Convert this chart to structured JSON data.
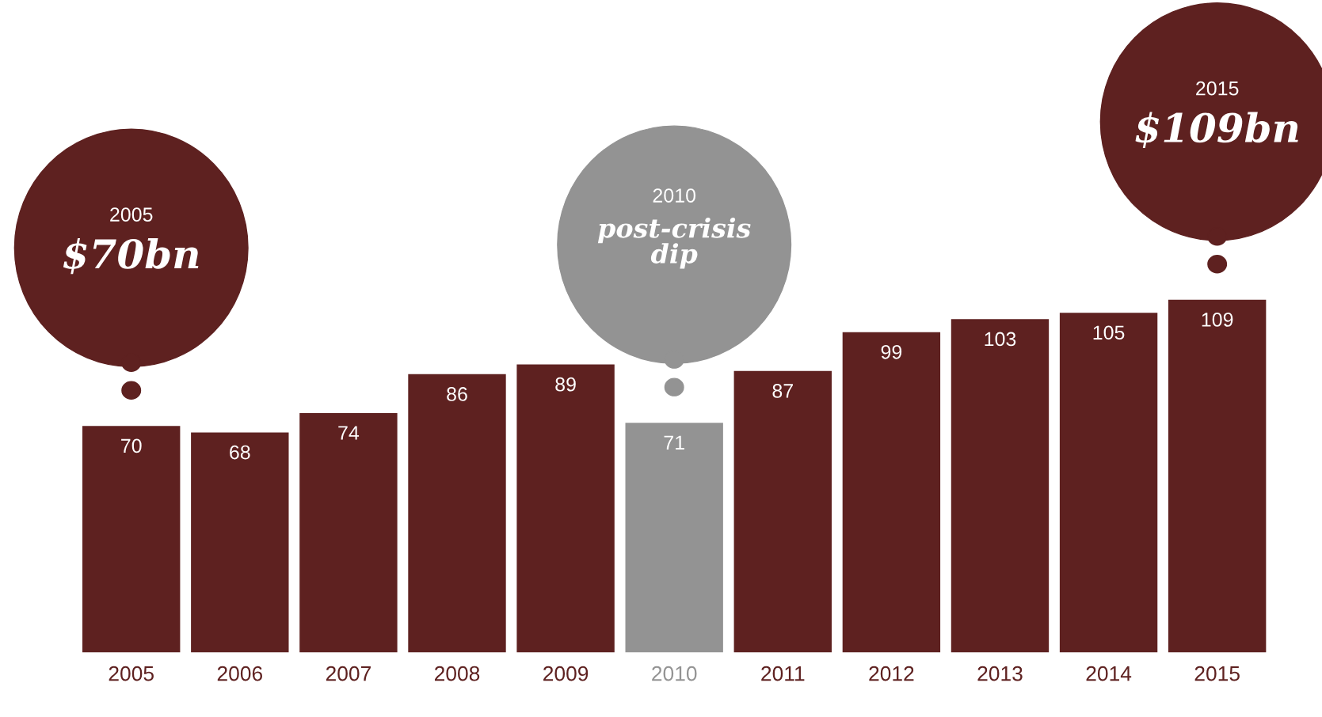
{
  "chart_data": {
    "type": "bar",
    "categories": [
      "2005",
      "2006",
      "2007",
      "2008",
      "2009",
      "2010",
      "2011",
      "2012",
      "2013",
      "2014",
      "2015"
    ],
    "values": [
      70,
      68,
      74,
      86,
      89,
      71,
      87,
      99,
      103,
      105,
      109
    ],
    "colors": [
      "#5e2120",
      "#5e2120",
      "#5e2120",
      "#5e2120",
      "#5e2120",
      "#939393",
      "#5e2120",
      "#5e2120",
      "#5e2120",
      "#5e2120",
      "#5e2120"
    ],
    "data_labels": true,
    "annotations": [
      "2005\n$70bn",
      "2010\npost-crisis\ndip",
      "2015\n$109bn"
    ]
  }
}
